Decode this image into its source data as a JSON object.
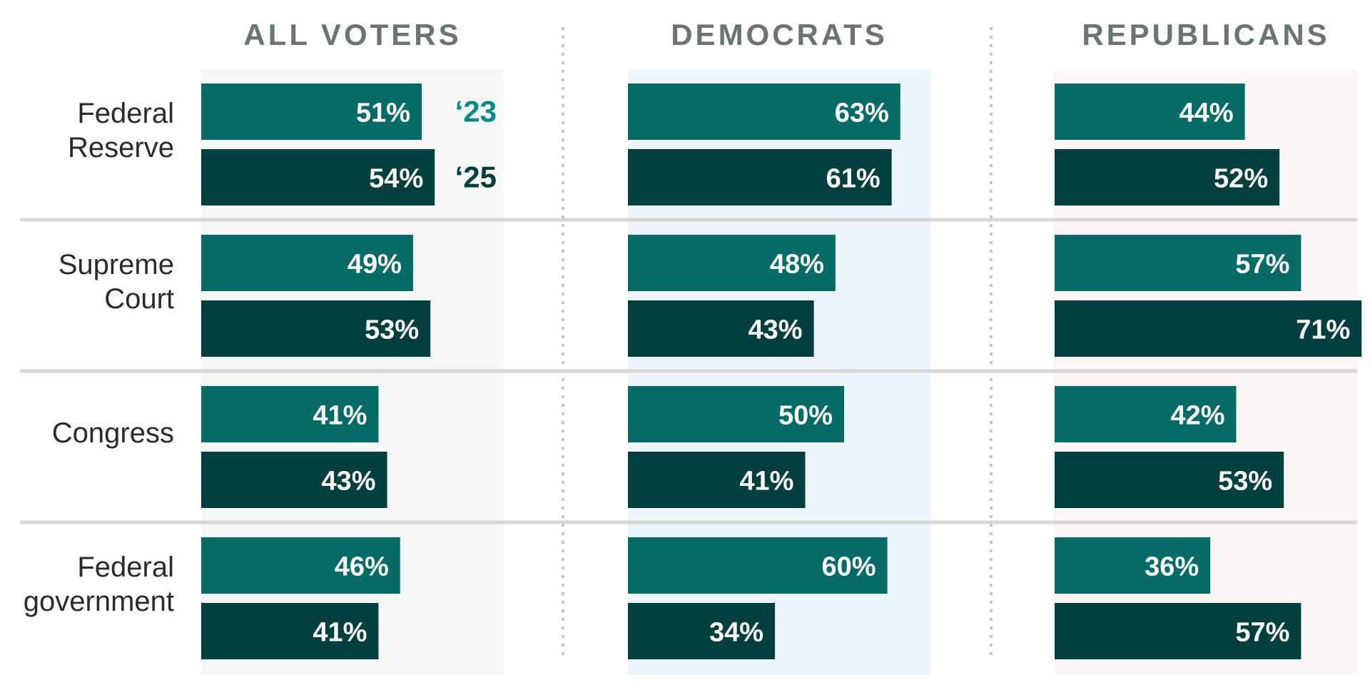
{
  "chart_data": {
    "type": "bar",
    "panels": [
      "ALL VOTERS",
      "DEMOCRATS",
      "REPUBLICANS"
    ],
    "categories": [
      "Federal Reserve",
      "Supreme Court",
      "Congress",
      "Federal government"
    ],
    "category_lines": [
      [
        "Federal",
        "Reserve"
      ],
      [
        "Supreme",
        "Court"
      ],
      [
        "Congress"
      ],
      [
        "Federal",
        "government"
      ]
    ],
    "series": [
      {
        "name": "‘23",
        "color": "#066b67",
        "values": [
          [
            51,
            49,
            41,
            46
          ],
          [
            63,
            48,
            50,
            60
          ],
          [
            44,
            57,
            42,
            36
          ]
        ],
        "labels": [
          [
            "51%",
            "49%",
            "41%",
            "46%"
          ],
          [
            "63%",
            "48%",
            "50%",
            "60%"
          ],
          [
            "44%",
            "57%",
            "42%",
            "36%"
          ]
        ]
      },
      {
        "name": "‘25",
        "color": "#023f3e",
        "values": [
          [
            54,
            53,
            43,
            41
          ],
          [
            61,
            43,
            41,
            34
          ],
          [
            52,
            71,
            53,
            57
          ]
        ],
        "labels": [
          [
            "54%",
            "53%",
            "43%",
            "41%"
          ],
          [
            "61%",
            "43%",
            "41%",
            "34%"
          ],
          [
            "52%",
            "71%",
            "53%",
            "57%"
          ]
        ]
      }
    ],
    "panel_backgrounds": [
      "#f5f7f7",
      "#edf4fc",
      "#fcf5f5"
    ],
    "legend_colors": [
      "#0a8a86",
      "#023f3e"
    ],
    "grid": false,
    "legend": "inline, right of first row in ALL VOTERS panel"
  }
}
